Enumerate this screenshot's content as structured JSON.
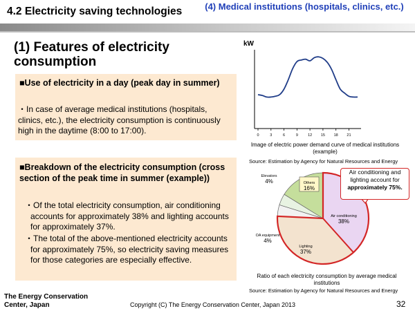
{
  "header": {
    "title": "4.2 Electricity saving technologies",
    "subtitle": "(4) Medical institutions (hospitals, clinics, etc.)"
  },
  "section": {
    "heading": "(1) Features of electricity consumption"
  },
  "box1": {
    "heading": "■Use of electricity in a day (peak day in summer)",
    "text": "・In case of average medical institutions (hospitals, clinics, etc.), the electricity consumption is continuously high in the daytime (8:00 to 17:00)."
  },
  "box2": {
    "heading": "■Breakdown of the electricity consumption (cross section of the peak time in summer (example))",
    "bullet1": "・Of the total electricity consumption, air conditioning accounts for approximately 38% and lighting accounts for approximately 37%.",
    "bullet2": "・The total of the above-mentioned electricity accounts for approximately 75%, so electricity saving measures for those categories are especially effective."
  },
  "chart_data": [
    {
      "type": "line",
      "ylabel": "kW",
      "x_ticks": [
        "0",
        "3",
        "6",
        "9",
        "12",
        "15",
        "18",
        "21"
      ],
      "x": [
        0,
        1,
        2,
        3,
        4,
        5,
        6,
        7,
        8,
        9,
        10,
        11,
        12,
        13,
        14,
        15,
        16,
        17,
        18,
        19,
        20,
        21,
        22,
        23
      ],
      "values": [
        0.43,
        0.42,
        0.4,
        0.4,
        0.41,
        0.43,
        0.5,
        0.62,
        0.76,
        0.85,
        0.87,
        0.88,
        0.86,
        0.9,
        0.91,
        0.89,
        0.84,
        0.75,
        0.62,
        0.5,
        0.45,
        0.41,
        0.4,
        0.4
      ],
      "ylim": [
        0,
        1
      ],
      "grid": false,
      "caption": "Image of electric power demand curve of medical institutions (example)",
      "source": "Source: Estimation by Agency for Natural Resources and Energy"
    },
    {
      "type": "pie",
      "slices": [
        {
          "label": "Air conditioning",
          "value": 38,
          "pct": "38%",
          "color": "#ead6f2"
        },
        {
          "label": "Lighting",
          "value": 37,
          "pct": "37%",
          "color": "#f3e3cf"
        },
        {
          "label": "OA equipment",
          "value": 4,
          "pct": "4%",
          "color": "#f2f2f2"
        },
        {
          "label": "Elevators",
          "value": 4,
          "pct": "4%",
          "color": "#e8f3e2"
        },
        {
          "label": "Others",
          "value": 16,
          "pct": "16%",
          "color": "#c5de9c"
        }
      ],
      "callout": "Air conditioning and lighting account for ",
      "callout_bold": "approximately 75%.",
      "caption": "Ratio of each electricity consumption by average medical institutions",
      "source": "Source: Estimation by Agency for Natural Resources and Energy"
    }
  ],
  "footer": {
    "org": "The Energy Conservation Center, Japan",
    "copyright": "Copyright (C) The Energy Conservation Center, Japan 2013",
    "page": "32"
  }
}
